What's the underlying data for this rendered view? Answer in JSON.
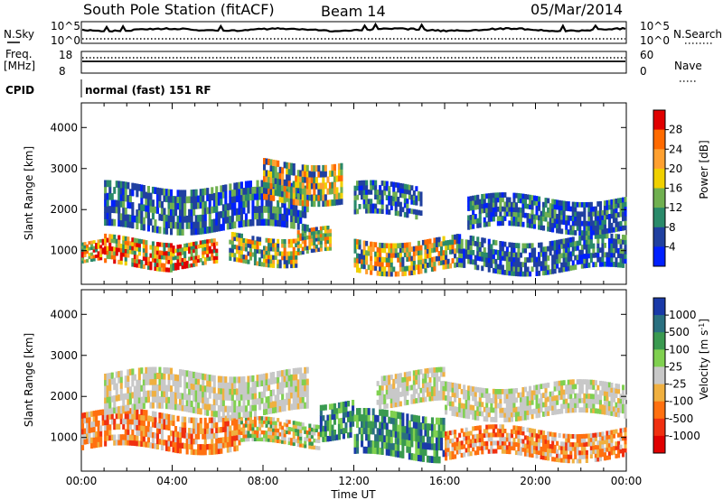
{
  "header": {
    "station": "South Pole Station (fitACF)",
    "beam": "Beam 14",
    "date": "05/Mar/2014"
  },
  "panels": {
    "nsky_label": "N.Sky",
    "nsearch_label": "N.Search",
    "freq_label_1": "Freq.",
    "freq_label_2": "[MHz]",
    "nave_label": "Nave",
    "cpid_label": "CPID",
    "cpid_value": "normal (fast) 151 RF",
    "noise_left_ticks": [
      "10^5",
      "10^0"
    ],
    "noise_right_ticks": [
      "10^5",
      "10^0"
    ],
    "freq_left_ticks": [
      "18",
      "8"
    ],
    "nave_right_ticks": [
      "60",
      "0"
    ]
  },
  "x_axis": {
    "label": "Time UT",
    "ticks": [
      "00:00",
      "04:00",
      "08:00",
      "12:00",
      "16:00",
      "20:00",
      "00:00"
    ]
  },
  "chart_data": [
    {
      "type": "heatmap",
      "quantity": "power",
      "xlabel": "Time UT",
      "ylabel": "Slant Range [km]",
      "colorbar_label": "Power [dB]",
      "x_ticks": [
        "00:00",
        "04:00",
        "08:00",
        "12:00",
        "16:00",
        "20:00",
        "00:00"
      ],
      "y_ticks": [
        1000,
        2000,
        3000,
        4000
      ],
      "ylim": [
        180,
        4600
      ],
      "colorbar_ticks": [
        "28",
        "24",
        "20",
        "16",
        "12",
        "8",
        "4"
      ],
      "colorbar_colors": [
        "#e00000",
        "#ff6a00",
        "#ffa030",
        "#f0d000",
        "#70b050",
        "#2a8a6a",
        "#2040a0",
        "#0020ff"
      ],
      "bands": [
        {
          "hours": [
            0.0,
            1.0
          ],
          "range": [
            700,
            1200
          ],
          "level": "high"
        },
        {
          "hours": [
            1.0,
            4.0
          ],
          "range": [
            600,
            1300
          ],
          "level": "high"
        },
        {
          "hours": [
            4.0,
            6.0
          ],
          "range": [
            600,
            1200
          ],
          "level": "high"
        },
        {
          "hours": [
            6.5,
            9.5
          ],
          "range": [
            700,
            1400
          ],
          "level": "medium"
        },
        {
          "hours": [
            9.5,
            11.0
          ],
          "range": [
            900,
            1500
          ],
          "level": "medium"
        },
        {
          "hours": [
            12.0,
            16.5
          ],
          "range": [
            500,
            1300
          ],
          "level": "medium"
        },
        {
          "hours": [
            16.5,
            24.0
          ],
          "range": [
            500,
            1300
          ],
          "level": "low"
        },
        {
          "hours": [
            1.0,
            10.0
          ],
          "range": [
            1500,
            2600
          ],
          "level": "low"
        },
        {
          "hours": [
            8.0,
            11.5
          ],
          "range": [
            2200,
            3200
          ],
          "level": "medium"
        },
        {
          "hours": [
            12.0,
            15.0
          ],
          "range": [
            1800,
            2600
          ],
          "level": "low"
        },
        {
          "hours": [
            17.0,
            24.0
          ],
          "range": [
            1500,
            2300
          ],
          "level": "low"
        }
      ]
    },
    {
      "type": "heatmap",
      "quantity": "velocity",
      "xlabel": "Time UT",
      "ylabel": "Slant Range [km]",
      "colorbar_label": "Velocity [m s-1]",
      "x_ticks": [
        "00:00",
        "04:00",
        "08:00",
        "12:00",
        "16:00",
        "20:00",
        "00:00"
      ],
      "y_ticks": [
        1000,
        2000,
        3000,
        4000
      ],
      "ylim": [
        180,
        4600
      ],
      "colorbar_ticks": [
        "1000",
        "500",
        "100",
        "25",
        "-25",
        "-100",
        "-500",
        "-1000"
      ],
      "colorbar_colors": [
        "#1a3aa8",
        "#2a7080",
        "#3a9a50",
        "#80d050",
        "#c8c8c8",
        "#f0b040",
        "#ff7010",
        "#f03010",
        "#e00000"
      ],
      "bands": [
        {
          "hours": [
            0.0,
            7.0
          ],
          "range": [
            700,
            1600
          ],
          "level": "negative"
        },
        {
          "hours": [
            7.0,
            10.5
          ],
          "range": [
            800,
            1400
          ],
          "level": "mixed"
        },
        {
          "hours": [
            10.5,
            12.0
          ],
          "range": [
            1000,
            1900
          ],
          "level": "positive"
        },
        {
          "hours": [
            12.0,
            16.0
          ],
          "range": [
            500,
            1600
          ],
          "level": "positive"
        },
        {
          "hours": [
            16.0,
            24.0
          ],
          "range": [
            500,
            1200
          ],
          "level": "negative"
        },
        {
          "hours": [
            1.0,
            10.0
          ],
          "range": [
            1600,
            2600
          ],
          "level": "near-zero"
        },
        {
          "hours": [
            13.0,
            16.0
          ],
          "range": [
            1800,
            2600
          ],
          "level": "near-zero"
        },
        {
          "hours": [
            16.0,
            24.0
          ],
          "range": [
            1500,
            2300
          ],
          "level": "near-zero"
        }
      ]
    }
  ]
}
